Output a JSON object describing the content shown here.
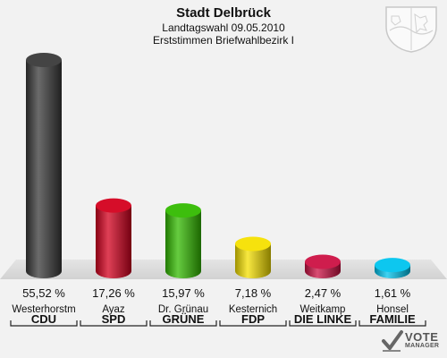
{
  "header": {
    "title": "Stadt Delbrück",
    "subtitle": "Landtagswahl 09.05.2010",
    "subtitle2": "Erststimmen Briefwahlbezirk I"
  },
  "brand": {
    "line1": "VOTE",
    "line2": "MANAGER"
  },
  "chart_data": {
    "type": "bar",
    "title": "Stadt Delbrück",
    "categories": [
      "CDU",
      "SPD",
      "GRÜNE",
      "FDP",
      "DIE LINKE",
      "FAMILIE"
    ],
    "candidates": [
      "Westerhorstm",
      "Ayaz",
      "Dr. Grünau",
      "Kesternich",
      "Weitkamp",
      "Honsel"
    ],
    "values": [
      55.52,
      17.26,
      15.97,
      7.18,
      2.47,
      1.61
    ],
    "value_labels": [
      "55,52 %",
      "17,26 %",
      "15,97 %",
      "7,18 %",
      "2,47 %",
      "1,61 %"
    ],
    "colors": [
      "#3a3a3a",
      "#d4001e",
      "#33bb00",
      "#f5e000",
      "#cc1144",
      "#00c4ee"
    ],
    "ylim": [
      0,
      60
    ],
    "grid": false,
    "legend": "none"
  }
}
